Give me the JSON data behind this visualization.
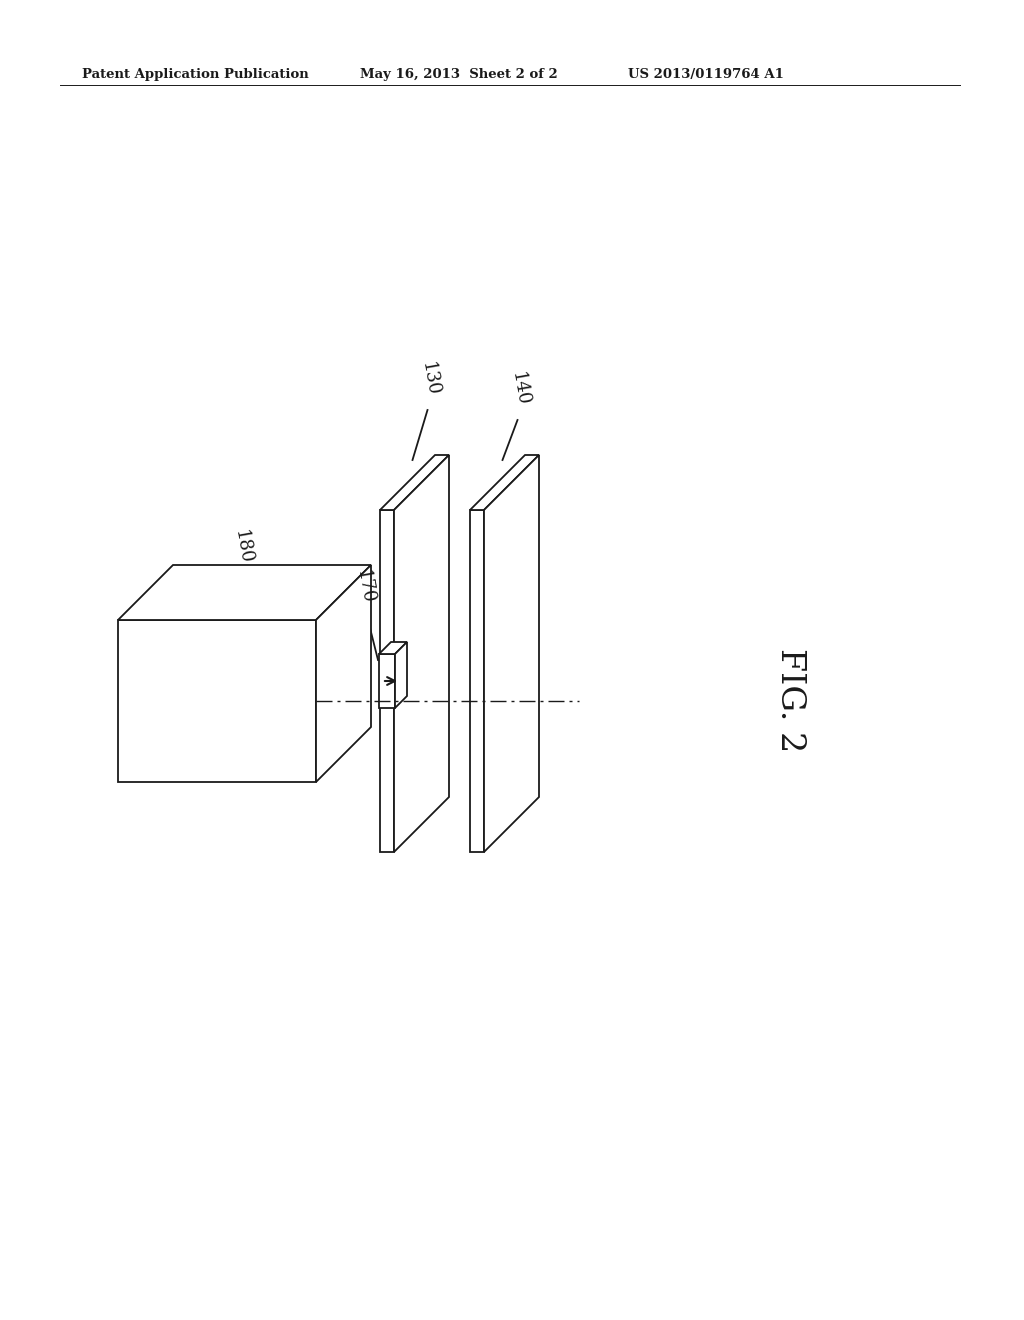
{
  "bg_color": "#ffffff",
  "line_color": "#1a1a1a",
  "header_left": "Patent Application Publication",
  "header_mid": "May 16, 2013  Sheet 2 of 2",
  "header_right": "US 2013/0119764 A1",
  "fig_label": "FIG. 2",
  "label_180": "180",
  "label_170": "170",
  "label_130": "130",
  "label_140": "140",
  "header_font_size": 9.5,
  "label_font_size": 13,
  "fig_font_size": 24,
  "line_width": 1.3
}
